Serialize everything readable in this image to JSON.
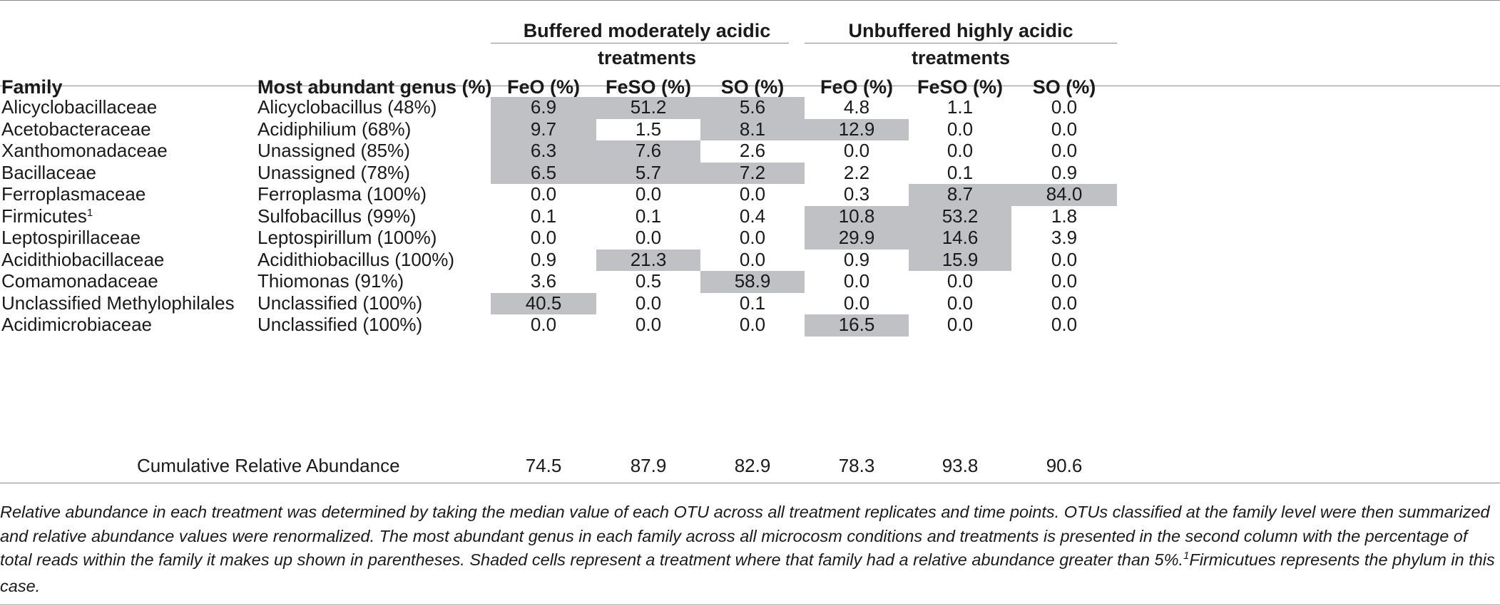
{
  "table": {
    "group_headers": [
      "Buffered moderately acidic treatments",
      "Unbuffered highly acidic treatments"
    ],
    "columns": [
      "Family",
      "Most abundant genus (%)",
      "FeO (%)",
      "FeSO (%)",
      "SO (%)",
      "FeO (%)",
      "FeSO (%)",
      "SO (%)"
    ],
    "rows": [
      {
        "family": "Alicyclobacillaceae",
        "sup": "",
        "genus": "Alicyclobacillus (48%)",
        "values": [
          "6.9",
          "51.2",
          "5.6",
          "4.8",
          "1.1",
          "0.0"
        ],
        "shaded": [
          true,
          true,
          true,
          false,
          false,
          false
        ]
      },
      {
        "family": "Acetobacteraceae",
        "sup": "",
        "genus": "Acidiphilium (68%)",
        "values": [
          "9.7",
          "1.5",
          "8.1",
          "12.9",
          "0.0",
          "0.0"
        ],
        "shaded": [
          true,
          false,
          true,
          true,
          false,
          false
        ]
      },
      {
        "family": "Xanthomonadaceae",
        "sup": "",
        "genus": "Unassigned (85%)",
        "values": [
          "6.3",
          "7.6",
          "2.6",
          "0.0",
          "0.0",
          "0.0"
        ],
        "shaded": [
          true,
          true,
          false,
          false,
          false,
          false
        ]
      },
      {
        "family": "Bacillaceae",
        "sup": "",
        "genus": "Unassigned (78%)",
        "values": [
          "6.5",
          "5.7",
          "7.2",
          "2.2",
          "0.1",
          "0.9"
        ],
        "shaded": [
          true,
          true,
          true,
          false,
          false,
          false
        ]
      },
      {
        "family": "Ferroplasmaceae",
        "sup": "",
        "genus": "Ferroplasma (100%)",
        "values": [
          "0.0",
          "0.0",
          "0.0",
          "0.3",
          "8.7",
          "84.0"
        ],
        "shaded": [
          false,
          false,
          false,
          false,
          true,
          true
        ]
      },
      {
        "family": "Firmicutes",
        "sup": "1",
        "genus": "Sulfobacillus (99%)",
        "values": [
          "0.1",
          "0.1",
          "0.4",
          "10.8",
          "53.2",
          "1.8"
        ],
        "shaded": [
          false,
          false,
          false,
          true,
          true,
          false
        ]
      },
      {
        "family": "Leptospirillaceae",
        "sup": "",
        "genus": "Leptospirillum (100%)",
        "values": [
          "0.0",
          "0.0",
          "0.0",
          "29.9",
          "14.6",
          "3.9"
        ],
        "shaded": [
          false,
          false,
          false,
          true,
          true,
          false
        ]
      },
      {
        "family": "Acidithiobacillaceae",
        "sup": "",
        "genus": "Acidithiobacillus (100%)",
        "values": [
          "0.9",
          "21.3",
          "0.0",
          "0.9",
          "15.9",
          "0.0"
        ],
        "shaded": [
          false,
          true,
          false,
          false,
          true,
          false
        ]
      },
      {
        "family": "Comamonadaceae",
        "sup": "",
        "genus": "Thiomonas (91%)",
        "values": [
          "3.6",
          "0.5",
          "58.9",
          "0.0",
          "0.0",
          "0.0"
        ],
        "shaded": [
          false,
          false,
          true,
          false,
          false,
          false
        ]
      },
      {
        "family": "Unclassified Methylophilales",
        "sup": "",
        "genus": "Unclassified (100%)",
        "values": [
          "40.5",
          "0.0",
          "0.1",
          "0.0",
          "0.0",
          "0.0"
        ],
        "shaded": [
          true,
          false,
          false,
          false,
          false,
          false
        ]
      },
      {
        "family": "Acidimicrobiaceae",
        "sup": "",
        "genus": "Unclassified (100%)",
        "values": [
          "0.0",
          "0.0",
          "0.0",
          "16.5",
          "0.0",
          "0.0"
        ],
        "shaded": [
          false,
          false,
          false,
          true,
          false,
          false
        ]
      }
    ],
    "cumulative": {
      "label": "Cumulative Relative Abundance",
      "values": [
        "74.5",
        "87.9",
        "82.9",
        "78.3",
        "93.8",
        "90.6"
      ]
    }
  },
  "footnote": {
    "text": "Relative abundance in each treatment was determined by taking the median value of each OTU across all treatment replicates and time points. OTUs classified at the family level were then summarized and relative abundance values were renormalized. The most abundant genus in each family across all microcosm conditions and treatments is presented in the second column with the percentage of total reads within the family it makes up shown in parentheses. Shaded cells represent a treatment where that family had a relative abundance greater than 5%.",
    "sup": "1",
    "tail": "Firmicutues represents the phylum in this case."
  },
  "colors": {
    "shade": "#c0c1c4",
    "rule": "#8a8a8a",
    "text": "#1a1a1a"
  }
}
